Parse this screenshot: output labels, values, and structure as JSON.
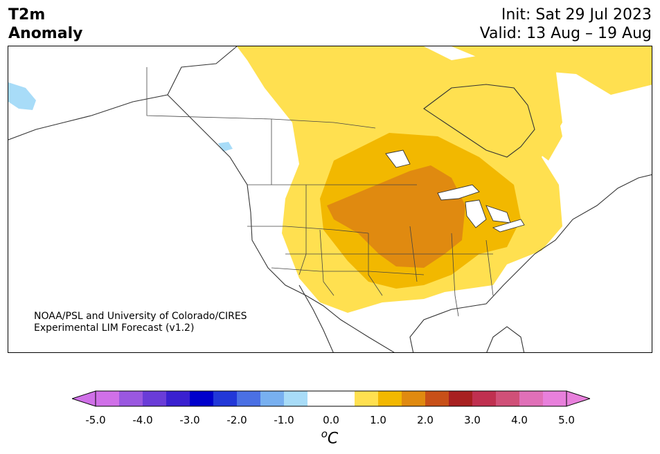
{
  "title": {
    "line1": "T2m",
    "line2": "Anomaly"
  },
  "dates": {
    "init": "Init: Sat 29 Jul 2023",
    "valid": "Valid: 13 Aug – 19 Aug"
  },
  "credit": {
    "line1": "NOAA/PSL and University of Colorado/CIRES",
    "line2": "Experimental LIM Forecast (v1.2)"
  },
  "colorbar": {
    "ticks": [
      "-5.0",
      "-4.0",
      "-3.0",
      "-2.0",
      "-1.0",
      "0.0",
      "1.0",
      "2.0",
      "3.0",
      "4.0",
      "5.0"
    ],
    "unit_sup": "o",
    "unit": "C",
    "colors": [
      "#d070e8",
      "#9a58e0",
      "#6a3cd8",
      "#3a20d0",
      "#0000cc",
      "#2238d8",
      "#4a70e4",
      "#78b0f0",
      "#a8dcf8",
      "#ffffff",
      "#ffffff",
      "#ffe050",
      "#f2b800",
      "#e08a10",
      "#c85018",
      "#a82020",
      "#c03050",
      "#d05078",
      "#e070b8",
      "#e880dc"
    ],
    "under_color": "#d070e8",
    "over_color": "#e880dc"
  },
  "map": {
    "colors": {
      "land_border": "#333333",
      "anom_05": "#ffe050",
      "anom_15": "#f2b800",
      "anom_25": "#e08a10",
      "cold": "#a8dcf8"
    }
  }
}
